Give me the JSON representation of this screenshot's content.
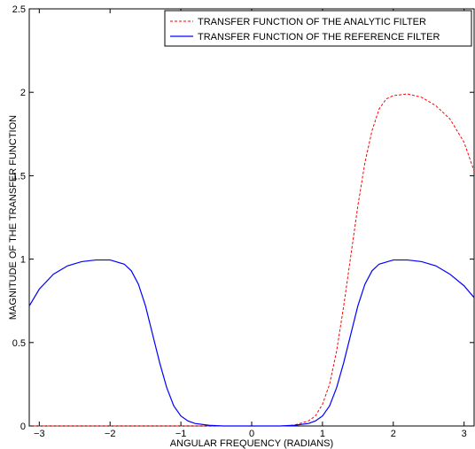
{
  "chart_data": {
    "type": "line",
    "title": "",
    "xlabel": "ANGULAR FREQUENCY (RADIANS)",
    "ylabel": "MAGNITUDE OF THE TRANSFER FUNCTION",
    "xlim": [
      -3.1416,
      3.1416
    ],
    "ylim": [
      0,
      2.5
    ],
    "xticks": [
      -3,
      -2,
      -1,
      0,
      1,
      2,
      3
    ],
    "xtick_labels": [
      "−3",
      "−2",
      "−1",
      "0",
      "1",
      "2",
      "3"
    ],
    "yticks": [
      0,
      0.5,
      1,
      1.5,
      2,
      2.5
    ],
    "ytick_labels": [
      "0",
      "0.5",
      "1",
      "1.5",
      "2",
      "2.5"
    ],
    "grid": false,
    "legend_position": "top-right",
    "series": [
      {
        "name": "TRANSFER FUNCTION OF THE ANALYTIC FILTER",
        "color": "#ff0000",
        "dash": "dashed",
        "x": [
          -3.14,
          -3.0,
          -2.5,
          -2.0,
          -1.5,
          -1.0,
          -0.5,
          0.0,
          0.4,
          0.6,
          0.8,
          0.9,
          1.0,
          1.1,
          1.2,
          1.3,
          1.4,
          1.5,
          1.6,
          1.7,
          1.8,
          1.9,
          2.0,
          2.2,
          2.4,
          2.6,
          2.8,
          3.0,
          3.14
        ],
        "y": [
          0,
          0,
          0,
          0,
          0,
          0,
          0,
          0,
          0,
          0.005,
          0.03,
          0.06,
          0.13,
          0.25,
          0.45,
          0.72,
          1.02,
          1.32,
          1.58,
          1.77,
          1.9,
          1.96,
          1.98,
          1.99,
          1.97,
          1.92,
          1.84,
          1.7,
          1.53
        ]
      },
      {
        "name": "TRANSFER FUNCTION OF THE REFERENCE FILTER",
        "color": "#0000ff",
        "dash": "solid",
        "x": [
          -3.14,
          -3.0,
          -2.8,
          -2.6,
          -2.4,
          -2.2,
          -2.0,
          -1.8,
          -1.7,
          -1.6,
          -1.5,
          -1.4,
          -1.3,
          -1.2,
          -1.1,
          -1.0,
          -0.9,
          -0.8,
          -0.6,
          -0.4,
          0.0,
          0.4,
          0.6,
          0.8,
          0.9,
          1.0,
          1.1,
          1.2,
          1.3,
          1.4,
          1.5,
          1.6,
          1.7,
          1.8,
          2.0,
          2.2,
          2.4,
          2.6,
          2.8,
          3.0,
          3.14
        ],
        "y": [
          0.72,
          0.82,
          0.91,
          0.96,
          0.985,
          0.995,
          0.995,
          0.97,
          0.93,
          0.85,
          0.72,
          0.55,
          0.38,
          0.23,
          0.12,
          0.06,
          0.03,
          0.015,
          0.004,
          0,
          0,
          0,
          0.004,
          0.015,
          0.03,
          0.06,
          0.12,
          0.23,
          0.38,
          0.55,
          0.72,
          0.85,
          0.93,
          0.97,
          0.995,
          0.995,
          0.985,
          0.96,
          0.91,
          0.84,
          0.77
        ]
      }
    ]
  }
}
